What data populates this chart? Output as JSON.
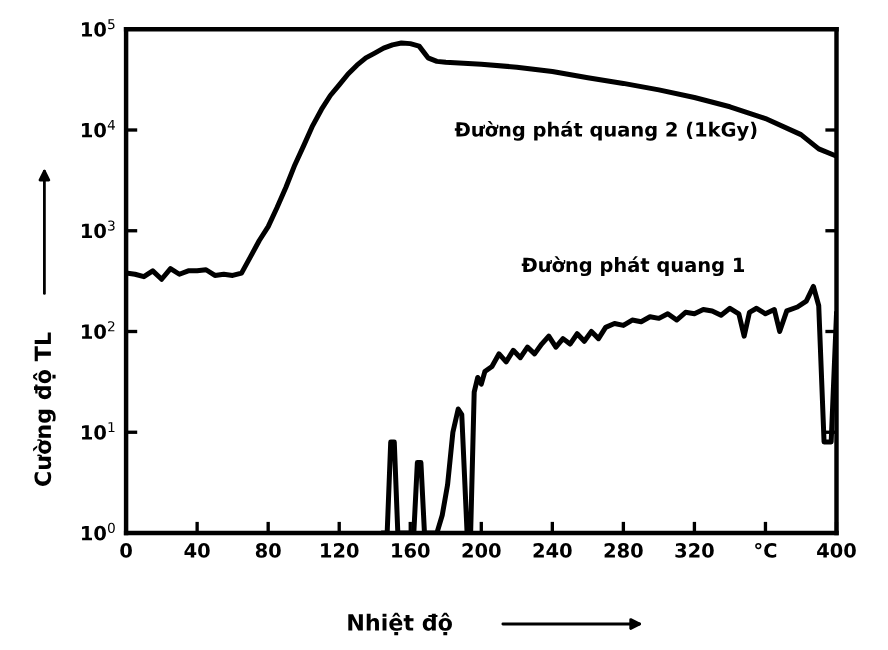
{
  "chart_data": {
    "type": "line",
    "xlabel": "Nhiệt độ",
    "ylabel": "Cường độ TL",
    "log": "y",
    "grid": false,
    "marker": "none",
    "line_style": "solid",
    "xlim": [
      0,
      400
    ],
    "ylim": [
      1,
      100000
    ],
    "xticks": [
      0,
      40,
      80,
      120,
      160,
      200,
      240,
      280,
      320,
      {
        "value": 360,
        "label": "°C"
      },
      400
    ],
    "yticks": [
      {
        "value": 1,
        "label": "10$^{0}$"
      },
      {
        "value": 10,
        "label": "10$^{1}$"
      },
      {
        "value": 100,
        "label": "10$^{2}$"
      },
      {
        "value": 1000,
        "label": "10$^{3}$"
      },
      {
        "value": 10000,
        "label": "10$^{4}$"
      },
      {
        "value": 100000,
        "label": "10$^{5}$"
      }
    ],
    "series": [
      {
        "name": "Đường phát quang 2 (1kGy)",
        "color": "#000000",
        "x": [
          0,
          5,
          10,
          15,
          20,
          25,
          30,
          35,
          40,
          45,
          50,
          55,
          60,
          65,
          70,
          75,
          80,
          85,
          90,
          95,
          100,
          105,
          110,
          115,
          120,
          125,
          130,
          135,
          140,
          145,
          150,
          155,
          160,
          165,
          170,
          175,
          180,
          190,
          200,
          220,
          240,
          260,
          280,
          300,
          320,
          340,
          360,
          380,
          390,
          400
        ],
        "values": [
          380,
          370,
          350,
          400,
          330,
          420,
          370,
          400,
          400,
          410,
          360,
          370,
          360,
          380,
          550,
          800,
          1100,
          1700,
          2700,
          4500,
          7000,
          11000,
          16000,
          22000,
          28000,
          36000,
          44000,
          52000,
          58000,
          65000,
          70000,
          73000,
          72000,
          68000,
          52000,
          48000,
          47000,
          46000,
          45000,
          42000,
          38000,
          33000,
          29000,
          25000,
          21000,
          17000,
          13000,
          9000,
          6500,
          5500
        ]
      },
      {
        "name": "Đường phát quang 1",
        "color": "#000000",
        "x": [
          145,
          147,
          149,
          151,
          153,
          162,
          164,
          166,
          168,
          175,
          178,
          181,
          184,
          187,
          189,
          192,
          194,
          196,
          198,
          200,
          202,
          206,
          210,
          214,
          218,
          222,
          226,
          230,
          234,
          238,
          242,
          246,
          250,
          254,
          258,
          262,
          266,
          270,
          275,
          280,
          285,
          290,
          295,
          300,
          305,
          310,
          315,
          320,
          325,
          330,
          335,
          340,
          345,
          348,
          351,
          355,
          360,
          365,
          368,
          372,
          378,
          383,
          387,
          390,
          393,
          397,
          400
        ],
        "values": [
          1,
          1,
          8,
          8,
          1,
          1,
          5,
          5,
          1,
          1,
          1.5,
          3,
          10,
          17,
          15,
          1,
          1,
          25,
          35,
          30,
          40,
          45,
          60,
          50,
          65,
          55,
          70,
          60,
          75,
          90,
          70,
          85,
          75,
          95,
          80,
          100,
          85,
          110,
          120,
          115,
          130,
          125,
          140,
          135,
          150,
          130,
          155,
          150,
          165,
          160,
          145,
          170,
          150,
          90,
          155,
          170,
          150,
          165,
          100,
          160,
          175,
          200,
          280,
          180,
          8,
          8,
          150
        ]
      }
    ]
  }
}
